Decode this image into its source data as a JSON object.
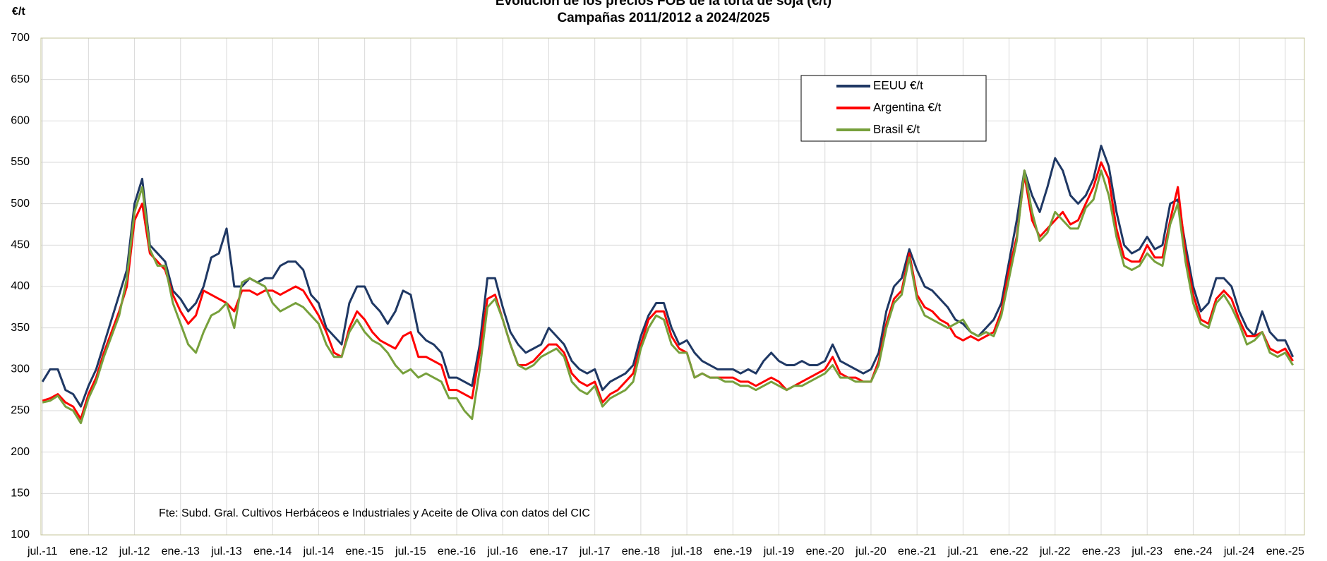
{
  "chart_data": {
    "type": "line",
    "title": "Evolución de los precios FOB de la torta de soja (€/t)",
    "subtitle": "Campañas 2011/2012 a 2024/2025",
    "y_label": "€/t",
    "annotation": "Fte: Subd. Gral. Cultivos Herbáceos e Industriales y Aceite de Oliva con datos del CIC",
    "categories": [
      "jul.-11",
      null,
      null,
      null,
      null,
      null,
      "ene.-12",
      null,
      null,
      null,
      null,
      null,
      "jul.-12",
      null,
      null,
      null,
      null,
      null,
      "ene.-13",
      null,
      null,
      null,
      null,
      null,
      "jul.-13",
      null,
      null,
      null,
      null,
      null,
      "ene.-14",
      null,
      null,
      null,
      null,
      null,
      "jul.-14",
      null,
      null,
      null,
      null,
      null,
      "ene.-15",
      null,
      null,
      null,
      null,
      null,
      "jul.-15",
      null,
      null,
      null,
      null,
      null,
      "ene.-16",
      null,
      null,
      null,
      null,
      null,
      "jul.-16",
      null,
      null,
      null,
      null,
      null,
      "ene.-17",
      null,
      null,
      null,
      null,
      null,
      "jul.-17",
      null,
      null,
      null,
      null,
      null,
      "ene.-18",
      null,
      null,
      null,
      null,
      null,
      "jul.-18",
      null,
      null,
      null,
      null,
      null,
      "ene.-19",
      null,
      null,
      null,
      null,
      null,
      "jul.-19",
      null,
      null,
      null,
      null,
      null,
      "ene.-20",
      null,
      null,
      null,
      null,
      null,
      "jul.-20",
      null,
      null,
      null,
      null,
      null,
      "ene.-21",
      null,
      null,
      null,
      null,
      null,
      "jul.-21",
      null,
      null,
      null,
      null,
      null,
      "ene.-22",
      null,
      null,
      null,
      null,
      null,
      "jul.-22",
      null,
      null,
      null,
      null,
      null,
      "ene.-23",
      null,
      null,
      null,
      null,
      null,
      "jul.-23",
      null,
      null,
      null,
      null,
      null,
      "ene.-24",
      null,
      null,
      null,
      null,
      null,
      "jul.-24",
      null,
      null,
      null,
      null,
      null,
      "ene.-25",
      null
    ],
    "series": [
      {
        "name": "EEUU €/t",
        "color": "#1f3864",
        "values": [
          285,
          300,
          300,
          275,
          270,
          255,
          280,
          300,
          330,
          360,
          390,
          420,
          500,
          530,
          450,
          440,
          430,
          395,
          385,
          370,
          380,
          400,
          435,
          440,
          470,
          400,
          400,
          410,
          405,
          410,
          410,
          425,
          430,
          430,
          420,
          390,
          380,
          350,
          340,
          330,
          380,
          400,
          400,
          380,
          370,
          355,
          370,
          395,
          390,
          345,
          335,
          330,
          320,
          290,
          290,
          285,
          280,
          330,
          410,
          410,
          375,
          345,
          330,
          320,
          325,
          330,
          350,
          340,
          330,
          310,
          300,
          295,
          300,
          275,
          285,
          290,
          295,
          305,
          340,
          365,
          380,
          380,
          350,
          330,
          335,
          320,
          310,
          305,
          300,
          300,
          300,
          295,
          300,
          295,
          310,
          320,
          310,
          305,
          305,
          310,
          305,
          305,
          310,
          330,
          310,
          305,
          300,
          295,
          300,
          320,
          370,
          400,
          410,
          445,
          420,
          400,
          395,
          385,
          375,
          360,
          355,
          345,
          340,
          350,
          360,
          380,
          430,
          480,
          540,
          510,
          490,
          520,
          555,
          540,
          510,
          500,
          510,
          530,
          570,
          545,
          490,
          450,
          440,
          445,
          460,
          445,
          450,
          500,
          505,
          450,
          400,
          370,
          380,
          410,
          410,
          400,
          370,
          350,
          340,
          370,
          345,
          335,
          335,
          315
        ]
      },
      {
        "name": "Argentina €/t",
        "color": "#ff0000",
        "values": [
          262,
          265,
          270,
          260,
          255,
          240,
          270,
          290,
          320,
          345,
          370,
          400,
          480,
          500,
          440,
          430,
          420,
          390,
          370,
          355,
          365,
          395,
          390,
          385,
          380,
          370,
          395,
          395,
          390,
          395,
          395,
          390,
          395,
          400,
          395,
          380,
          365,
          345,
          320,
          315,
          350,
          370,
          360,
          345,
          335,
          330,
          325,
          340,
          345,
          315,
          315,
          310,
          305,
          275,
          275,
          270,
          265,
          320,
          385,
          390,
          360,
          330,
          305,
          305,
          310,
          320,
          330,
          330,
          320,
          295,
          285,
          280,
          285,
          260,
          270,
          275,
          285,
          295,
          330,
          360,
          370,
          370,
          340,
          325,
          320,
          290,
          295,
          290,
          290,
          290,
          290,
          285,
          285,
          280,
          285,
          290,
          285,
          275,
          280,
          285,
          290,
          295,
          300,
          315,
          295,
          290,
          290,
          285,
          285,
          310,
          355,
          385,
          395,
          440,
          390,
          375,
          370,
          360,
          355,
          340,
          335,
          340,
          335,
          340,
          345,
          370,
          420,
          460,
          535,
          480,
          460,
          470,
          480,
          490,
          475,
          480,
          500,
          520,
          550,
          530,
          470,
          435,
          430,
          430,
          450,
          435,
          435,
          480,
          520,
          440,
          390,
          360,
          355,
          385,
          395,
          385,
          360,
          340,
          340,
          345,
          325,
          320,
          325,
          310
        ]
      },
      {
        "name": "Brasil €/t",
        "color": "#77a03c",
        "values": [
          260,
          262,
          268,
          255,
          250,
          235,
          265,
          285,
          315,
          340,
          365,
          410,
          490,
          520,
          445,
          425,
          425,
          380,
          355,
          330,
          320,
          345,
          365,
          370,
          380,
          350,
          405,
          410,
          405,
          400,
          380,
          370,
          375,
          380,
          375,
          365,
          355,
          330,
          315,
          315,
          345,
          360,
          345,
          335,
          330,
          320,
          305,
          295,
          300,
          290,
          295,
          290,
          285,
          265,
          265,
          250,
          240,
          300,
          375,
          385,
          360,
          330,
          305,
          300,
          305,
          315,
          320,
          325,
          315,
          285,
          275,
          270,
          280,
          255,
          265,
          270,
          275,
          285,
          325,
          350,
          365,
          360,
          330,
          320,
          320,
          290,
          295,
          290,
          290,
          285,
          285,
          280,
          280,
          275,
          280,
          285,
          280,
          275,
          280,
          280,
          285,
          290,
          295,
          305,
          290,
          290,
          285,
          285,
          285,
          305,
          350,
          380,
          390,
          435,
          385,
          365,
          360,
          355,
          350,
          355,
          360,
          345,
          340,
          345,
          340,
          365,
          410,
          455,
          540,
          490,
          455,
          465,
          490,
          480,
          470,
          470,
          495,
          505,
          540,
          510,
          460,
          425,
          420,
          425,
          440,
          430,
          425,
          475,
          500,
          430,
          380,
          355,
          350,
          380,
          390,
          375,
          355,
          330,
          335,
          345,
          320,
          315,
          320,
          305
        ]
      }
    ],
    "ylim": [
      100,
      700
    ],
    "yticks": [
      100,
      150,
      200,
      250,
      300,
      350,
      400,
      450,
      500,
      550,
      600,
      650,
      700
    ],
    "grid": true,
    "legend": "top-right"
  }
}
